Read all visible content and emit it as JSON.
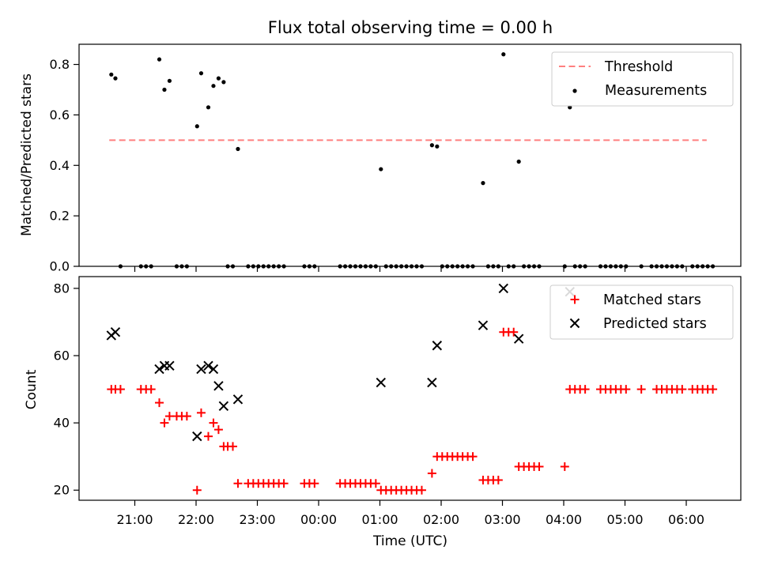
{
  "chart_data": [
    {
      "type": "line+scatter",
      "title": "Flux total observing time = 0.00 h",
      "xlabel": "",
      "ylabel": "Matched/Predicted stars",
      "ylim": [
        0,
        0.88
      ],
      "yticks": [
        "0.0",
        "0.2",
        "0.4",
        "0.6",
        "0.8"
      ],
      "ytick_values": [
        0,
        0.2,
        0.4,
        0.6,
        0.8
      ],
      "legend_position": "top-right",
      "threshold": {
        "name": "Threshold",
        "value": 0.5,
        "x_start": "20:35",
        "x_end": "06:20",
        "color": "#ff7f7f"
      },
      "measurements": {
        "name": "Measurements",
        "color": "#000000",
        "points": [
          [
            "20:37",
            0.76
          ],
          [
            "20:41",
            0.745
          ],
          [
            "21:24",
            0.82
          ],
          [
            "21:29",
            0.7
          ],
          [
            "21:34",
            0.735
          ],
          [
            "22:01",
            0.555
          ],
          [
            "22:05",
            0.765
          ],
          [
            "22:12",
            0.63
          ],
          [
            "22:17",
            0.715
          ],
          [
            "22:22",
            0.745
          ],
          [
            "22:27",
            0.73
          ],
          [
            "22:41",
            0.465
          ],
          [
            "01:01",
            0.385
          ],
          [
            "01:51",
            0.48
          ],
          [
            "01:56",
            0.475
          ],
          [
            "02:41",
            0.33
          ],
          [
            "03:01",
            0.84
          ],
          [
            "03:16",
            0.415
          ],
          [
            "04:06",
            0.63
          ],
          [
            "20:46",
            0.0
          ],
          [
            "21:06",
            0.0
          ],
          [
            "21:11",
            0.0
          ],
          [
            "21:16",
            0.0
          ],
          [
            "21:41",
            0.0
          ],
          [
            "21:46",
            0.0
          ],
          [
            "21:51",
            0.0
          ],
          [
            "22:31",
            0.0
          ],
          [
            "22:36",
            0.0
          ],
          [
            "22:51",
            0.0
          ],
          [
            "22:56",
            0.0
          ],
          [
            "23:01",
            0.0
          ],
          [
            "23:06",
            0.0
          ],
          [
            "23:11",
            0.0
          ],
          [
            "23:16",
            0.0
          ],
          [
            "23:21",
            0.0
          ],
          [
            "23:26",
            0.0
          ],
          [
            "23:46",
            0.0
          ],
          [
            "23:51",
            0.0
          ],
          [
            "23:56",
            0.0
          ],
          [
            "00:21",
            0.0
          ],
          [
            "00:26",
            0.0
          ],
          [
            "00:31",
            0.0
          ],
          [
            "00:36",
            0.0
          ],
          [
            "00:41",
            0.0
          ],
          [
            "00:46",
            0.0
          ],
          [
            "00:51",
            0.0
          ],
          [
            "00:56",
            0.0
          ],
          [
            "01:06",
            0.0
          ],
          [
            "01:11",
            0.0
          ],
          [
            "01:16",
            0.0
          ],
          [
            "01:21",
            0.0
          ],
          [
            "01:26",
            0.0
          ],
          [
            "01:31",
            0.0
          ],
          [
            "01:36",
            0.0
          ],
          [
            "01:41",
            0.0
          ],
          [
            "02:01",
            0.0
          ],
          [
            "02:06",
            0.0
          ],
          [
            "02:11",
            0.0
          ],
          [
            "02:16",
            0.0
          ],
          [
            "02:21",
            0.0
          ],
          [
            "02:26",
            0.0
          ],
          [
            "02:31",
            0.0
          ],
          [
            "02:46",
            0.0
          ],
          [
            "02:51",
            0.0
          ],
          [
            "02:56",
            0.0
          ],
          [
            "03:06",
            0.0
          ],
          [
            "03:11",
            0.0
          ],
          [
            "03:21",
            0.0
          ],
          [
            "03:26",
            0.0
          ],
          [
            "03:31",
            0.0
          ],
          [
            "03:36",
            0.0
          ],
          [
            "04:01",
            0.0
          ],
          [
            "04:11",
            0.0
          ],
          [
            "04:16",
            0.0
          ],
          [
            "04:21",
            0.0
          ],
          [
            "04:36",
            0.0
          ],
          [
            "04:41",
            0.0
          ],
          [
            "04:46",
            0.0
          ],
          [
            "04:51",
            0.0
          ],
          [
            "04:56",
            0.0
          ],
          [
            "05:01",
            0.0
          ],
          [
            "05:16",
            0.0
          ],
          [
            "05:26",
            0.0
          ],
          [
            "05:31",
            0.0
          ],
          [
            "05:36",
            0.0
          ],
          [
            "05:41",
            0.0
          ],
          [
            "05:46",
            0.0
          ],
          [
            "05:51",
            0.0
          ],
          [
            "05:56",
            0.0
          ],
          [
            "06:06",
            0.0
          ],
          [
            "06:11",
            0.0
          ],
          [
            "06:16",
            0.0
          ],
          [
            "06:21",
            0.0
          ],
          [
            "06:26",
            0.0
          ]
        ]
      }
    },
    {
      "type": "scatter",
      "title": "",
      "xlabel": "Time (UTC)",
      "ylabel": "Count",
      "ylim": [
        17,
        83.5
      ],
      "yticks": [
        "20",
        "40",
        "60",
        "80"
      ],
      "ytick_values": [
        20,
        40,
        60,
        80
      ],
      "xticks": [
        "21:00",
        "22:00",
        "23:00",
        "00:00",
        "01:00",
        "02:00",
        "03:00",
        "04:00",
        "05:00",
        "06:00"
      ],
      "legend_position": "top-right",
      "series": [
        {
          "name": "Matched stars",
          "marker": "plus",
          "color": "#ff0000",
          "points": [
            [
              "20:37",
              50
            ],
            [
              "20:41",
              50
            ],
            [
              "20:46",
              50
            ],
            [
              "21:06",
              50
            ],
            [
              "21:11",
              50
            ],
            [
              "21:16",
              50
            ],
            [
              "21:24",
              46
            ],
            [
              "21:29",
              40
            ],
            [
              "21:34",
              42
            ],
            [
              "21:41",
              42
            ],
            [
              "21:46",
              42
            ],
            [
              "21:51",
              42
            ],
            [
              "22:01",
              20
            ],
            [
              "22:05",
              43
            ],
            [
              "22:12",
              36
            ],
            [
              "22:17",
              40
            ],
            [
              "22:22",
              38
            ],
            [
              "22:27",
              33
            ],
            [
              "22:31",
              33
            ],
            [
              "22:36",
              33
            ],
            [
              "22:41",
              22
            ],
            [
              "22:51",
              22
            ],
            [
              "22:56",
              22
            ],
            [
              "23:01",
              22
            ],
            [
              "23:06",
              22
            ],
            [
              "23:11",
              22
            ],
            [
              "23:16",
              22
            ],
            [
              "23:21",
              22
            ],
            [
              "23:26",
              22
            ],
            [
              "23:46",
              22
            ],
            [
              "23:51",
              22
            ],
            [
              "23:56",
              22
            ],
            [
              "00:21",
              22
            ],
            [
              "00:26",
              22
            ],
            [
              "00:31",
              22
            ],
            [
              "00:36",
              22
            ],
            [
              "00:41",
              22
            ],
            [
              "00:46",
              22
            ],
            [
              "00:51",
              22
            ],
            [
              "00:56",
              22
            ],
            [
              "01:01",
              20
            ],
            [
              "01:06",
              20
            ],
            [
              "01:11",
              20
            ],
            [
              "01:16",
              20
            ],
            [
              "01:21",
              20
            ],
            [
              "01:26",
              20
            ],
            [
              "01:31",
              20
            ],
            [
              "01:36",
              20
            ],
            [
              "01:41",
              20
            ],
            [
              "01:51",
              25
            ],
            [
              "01:56",
              30
            ],
            [
              "02:01",
              30
            ],
            [
              "02:06",
              30
            ],
            [
              "02:11",
              30
            ],
            [
              "02:16",
              30
            ],
            [
              "02:21",
              30
            ],
            [
              "02:26",
              30
            ],
            [
              "02:31",
              30
            ],
            [
              "02:41",
              23
            ],
            [
              "02:46",
              23
            ],
            [
              "02:51",
              23
            ],
            [
              "02:56",
              23
            ],
            [
              "03:01",
              67
            ],
            [
              "03:06",
              67
            ],
            [
              "03:11",
              67
            ],
            [
              "03:16",
              27
            ],
            [
              "03:21",
              27
            ],
            [
              "03:26",
              27
            ],
            [
              "03:31",
              27
            ],
            [
              "03:36",
              27
            ],
            [
              "04:01",
              27
            ],
            [
              "04:06",
              50
            ],
            [
              "04:11",
              50
            ],
            [
              "04:16",
              50
            ],
            [
              "04:21",
              50
            ],
            [
              "04:36",
              50
            ],
            [
              "04:41",
              50
            ],
            [
              "04:46",
              50
            ],
            [
              "04:51",
              50
            ],
            [
              "04:56",
              50
            ],
            [
              "05:01",
              50
            ],
            [
              "05:16",
              50
            ],
            [
              "05:31",
              50
            ],
            [
              "05:36",
              50
            ],
            [
              "05:41",
              50
            ],
            [
              "05:46",
              50
            ],
            [
              "05:51",
              50
            ],
            [
              "05:56",
              50
            ],
            [
              "06:06",
              50
            ],
            [
              "06:11",
              50
            ],
            [
              "06:16",
              50
            ],
            [
              "06:21",
              50
            ],
            [
              "06:26",
              50
            ]
          ]
        },
        {
          "name": "Predicted stars",
          "marker": "x",
          "color": "#000000",
          "points": [
            [
              "20:37",
              66
            ],
            [
              "20:41",
              67
            ],
            [
              "21:24",
              56
            ],
            [
              "21:29",
              57
            ],
            [
              "21:34",
              57
            ],
            [
              "22:01",
              36
            ],
            [
              "22:05",
              56
            ],
            [
              "22:12",
              57
            ],
            [
              "22:17",
              56
            ],
            [
              "22:22",
              51
            ],
            [
              "22:27",
              45
            ],
            [
              "22:41",
              47
            ],
            [
              "01:01",
              52
            ],
            [
              "01:51",
              52
            ],
            [
              "01:56",
              63
            ],
            [
              "02:41",
              69
            ],
            [
              "03:01",
              80
            ],
            [
              "03:16",
              65
            ],
            [
              "04:06",
              79
            ]
          ]
        }
      ]
    }
  ]
}
